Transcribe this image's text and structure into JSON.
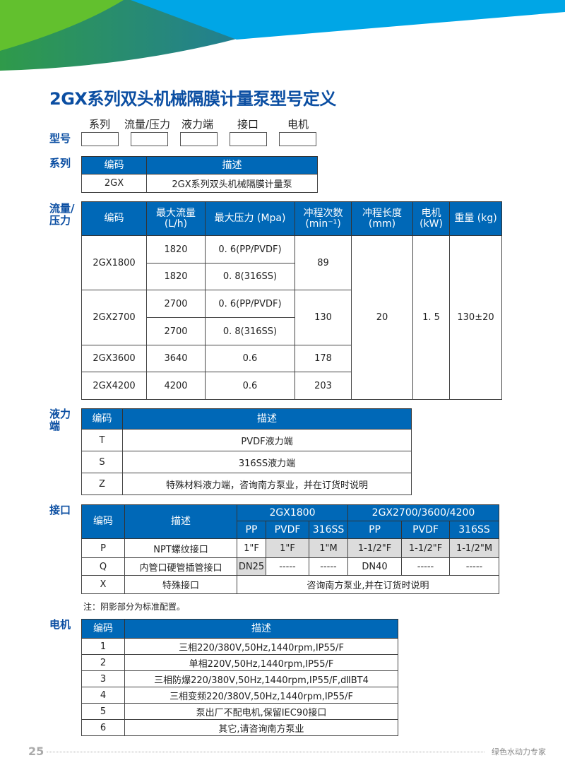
{
  "colors": {
    "brand_blue": "#0068b7",
    "title_blue": "#0b4ea2",
    "green": "#62c02e",
    "light_blue": "#00a6e6",
    "shade": "#dcdcdc"
  },
  "title": "2GX系列双头机械隔膜计量泵型号定义",
  "model": {
    "label": "型号",
    "parts": [
      "系列",
      "流量/压力",
      "液力端",
      "接口",
      "电机"
    ]
  },
  "series": {
    "label": "系列",
    "headers": [
      "编码",
      "描述"
    ],
    "rows": [
      [
        "2GX",
        "2GX系列双头机械隔膜计量泵"
      ]
    ]
  },
  "flow": {
    "label": "流量/压力",
    "headers": [
      "编码",
      "最大流量 (L/h)",
      "最大压力 (Mpa)",
      "冲程次数 (min⁻¹)",
      "冲程长度 (mm)",
      "电机 (kW)",
      "重量 (kg)"
    ],
    "models": [
      "2GX1800",
      "2GX2700",
      "2GX3600",
      "2GX4200"
    ],
    "flows": [
      "1820",
      "1820",
      "2700",
      "2700",
      "3640",
      "4200"
    ],
    "pressures": [
      "0. 6(PP/PVDF)",
      "0. 8(316SS)",
      "0. 6(PP/PVDF)",
      "0. 8(316SS)",
      "0.6",
      "0.6"
    ],
    "strokes": [
      "89",
      "130",
      "178",
      "203"
    ],
    "stroke_length": "20",
    "motor_kw": "1. 5",
    "weight": "130±20"
  },
  "hydraulic": {
    "label": "液力端",
    "headers": [
      "编码",
      "描述"
    ],
    "rows": [
      [
        "T",
        "PVDF液力端"
      ],
      [
        "S",
        "316SS液力端"
      ],
      [
        "Z",
        "特殊材料液力端，咨询南方泵业，并在订货时说明"
      ]
    ]
  },
  "interface": {
    "label": "接口",
    "headers": [
      "编码",
      "描述",
      "2GX1800",
      "2GX2700/3600/4200"
    ],
    "materials": [
      "PP",
      "PVDF",
      "316SS",
      "PP",
      "PVDF",
      "316SS"
    ],
    "rows": [
      {
        "code": "P",
        "desc": "NPT螺纹接口",
        "cells": [
          "1\"F",
          "1\"F",
          "1\"M",
          "1-1/2\"F",
          "1-1/2\"F",
          "1-1/2\"M"
        ],
        "shaded": [
          false,
          true,
          true,
          true,
          true,
          true
        ]
      },
      {
        "code": "Q",
        "desc": "内管口硬管插管接口",
        "cells": [
          "DN25",
          "-----",
          "-----",
          "DN40",
          "-----",
          "-----"
        ],
        "shaded": [
          true,
          false,
          false,
          false,
          false,
          false
        ]
      }
    ],
    "special": {
      "code": "X",
      "desc": "特殊接口",
      "text": "咨询南方泵业,并在订货时说明"
    },
    "note": "注：阴影部分为标准配置。"
  },
  "motor": {
    "label": "电机",
    "headers": [
      "编码",
      "描述"
    ],
    "rows": [
      [
        "1",
        "三相220/380V,50Hz,1440rpm,IP55/F"
      ],
      [
        "2",
        "单相220V,50Hz,1440rpm,IP55/F"
      ],
      [
        "3",
        "三相防爆220/380V,50Hz,1440rpm,IP55/F,dⅡBT4"
      ],
      [
        "4",
        "三相变频220/380V,50Hz,1440rpm,IP55/F"
      ],
      [
        "5",
        "泵出厂不配电机,保留IEC90接口"
      ],
      [
        "6",
        "其它,请咨询南方泵业"
      ]
    ]
  },
  "footer": {
    "page": "25",
    "slogan": "绿色水动力专家"
  }
}
